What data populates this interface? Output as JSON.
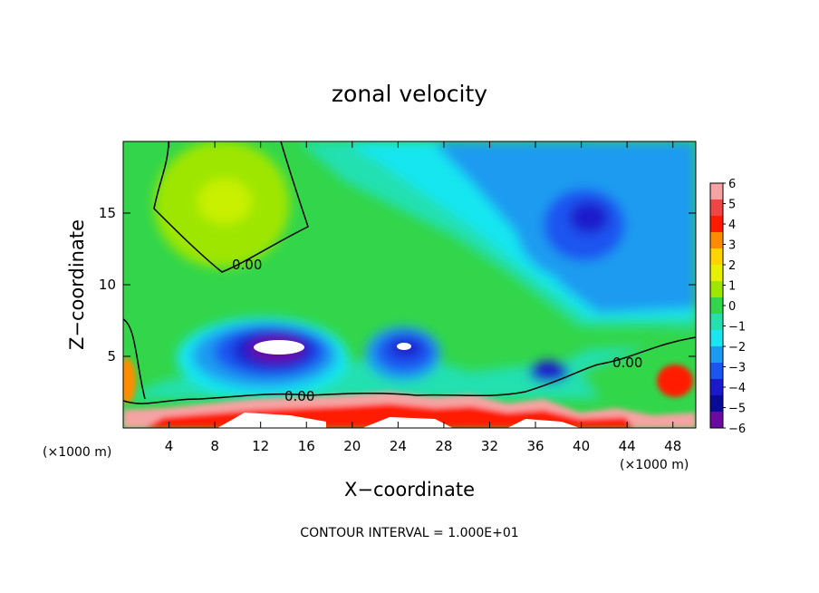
{
  "chart_data": {
    "type": "heatmap",
    "title": "zonal velocity",
    "xlabel": "X−coordinate",
    "ylabel": "Z−coordinate",
    "x_unit_left": "(×1000 m)",
    "x_unit_right": "(×1000 m)",
    "xlim": [
      0,
      50
    ],
    "ylim": [
      0,
      20
    ],
    "xticks": [
      4,
      8,
      12,
      16,
      20,
      24,
      28,
      32,
      36,
      40,
      44,
      48
    ],
    "yticks": [
      5,
      10,
      15
    ],
    "colorbar": {
      "ticks": [
        "6",
        "5",
        "4",
        "3",
        "2",
        "1",
        "0",
        "−1",
        "−2",
        "−3",
        "−4",
        "−5",
        "−6"
      ],
      "colors": [
        "#f5a3a3",
        "#f04545",
        "#ff1a00",
        "#ff8c00",
        "#ffd400",
        "#e6f000",
        "#9ee600",
        "#33d64a",
        "#24e0b0",
        "#19e6f0",
        "#1a9bf0",
        "#1a55f0",
        "#1a1acc",
        "#0a0a99",
        "#6a0aa0"
      ],
      "range": [
        -6,
        6
      ]
    },
    "contour_labels": [
      "0.00",
      "0.00",
      "0.00"
    ],
    "footer": "CONTOUR INTERVAL = 1.000E+01"
  }
}
